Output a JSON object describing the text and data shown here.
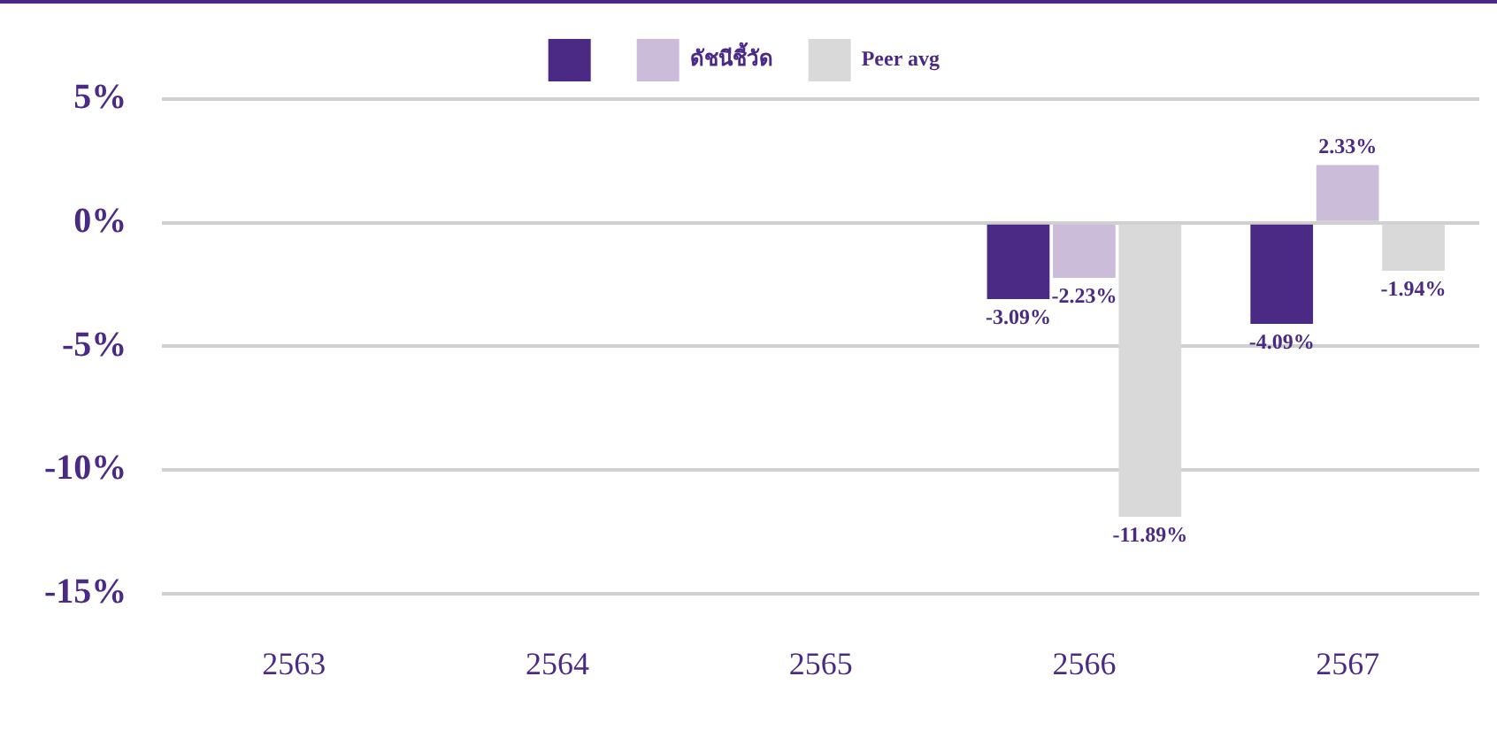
{
  "chart_data": {
    "type": "bar",
    "categories": [
      "2563",
      "2564",
      "2565",
      "2566",
      "2567"
    ],
    "series": [
      {
        "color": "#4b2a86",
        "values": [
          null,
          null,
          null,
          -3.09,
          -4.09
        ],
        "value_labels": [
          null,
          null,
          null,
          "-3.09%",
          "-4.09%"
        ]
      },
      {
        "name": "ดัชนีชี้วัด",
        "color": "#cbbdd9",
        "values": [
          null,
          null,
          null,
          -2.23,
          2.33
        ],
        "value_labels": [
          null,
          null,
          null,
          "-2.23%",
          "2.33%"
        ]
      },
      {
        "name": "Peer avg",
        "color": "#d9d9d9",
        "values": [
          null,
          null,
          null,
          -11.89,
          -1.94
        ],
        "value_labels": [
          null,
          null,
          null,
          "-11.89%",
          "-1.94%"
        ]
      }
    ],
    "ylim": [
      -15,
      5
    ],
    "yticks": [
      {
        "value": -15,
        "label": "-15%"
      },
      {
        "value": -10,
        "label": "-10%"
      },
      {
        "value": -5,
        "label": "-5%"
      },
      {
        "value": 0,
        "label": "0%"
      },
      {
        "value": 5,
        "label": "5%"
      }
    ],
    "grid": "y",
    "legend": "top"
  }
}
